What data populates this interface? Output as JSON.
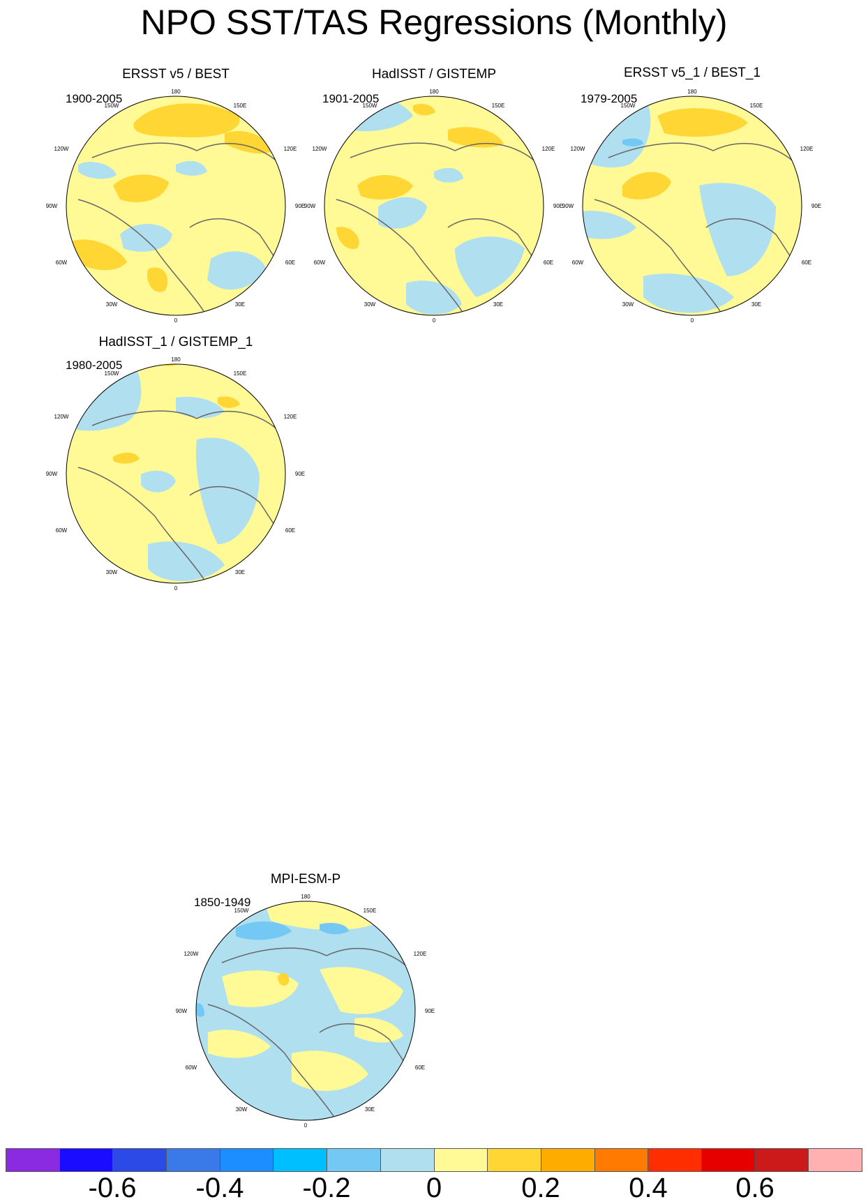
{
  "title": "NPO SST/TAS Regressions (Monthly)",
  "panels": [
    {
      "title": "ERSST v5 / BEST",
      "period": "1900-2005"
    },
    {
      "title": "HadISST / GISTEMP",
      "period": "1901-2005"
    },
    {
      "title": "ERSST v5_1 / BEST_1",
      "period": "1979-2005"
    },
    {
      "title": "HadISST_1 / GISTEMP_1",
      "period": "1980-2005"
    },
    {
      "title": "MPI-ESM-P",
      "period": "1850-1949"
    }
  ],
  "map_labels": {
    "top": "180",
    "upper_left": "150W",
    "upper_right": "150E",
    "left_upper": "120W",
    "right_upper": "120E",
    "left": "90W",
    "right": "90E",
    "left_lower": "60W",
    "right_lower": "60E",
    "lower_left": "30W",
    "lower_right": "30E",
    "bottom": "0"
  },
  "colorbar": {
    "colors": [
      "#8a2be2",
      "#1a0dff",
      "#2b4ae6",
      "#3a7ae8",
      "#1c8eff",
      "#00bfff",
      "#74c8f4",
      "#b0dff0",
      "#fffa96",
      "#ffd633",
      "#ffac00",
      "#ff7a00",
      "#ff2e00",
      "#e60000",
      "#cc1a1a",
      "#ffb0b0"
    ],
    "labels": [
      "-0.6",
      "-0.4",
      "-0.2",
      "0",
      "0.2",
      "0.4",
      "0.6"
    ]
  }
}
